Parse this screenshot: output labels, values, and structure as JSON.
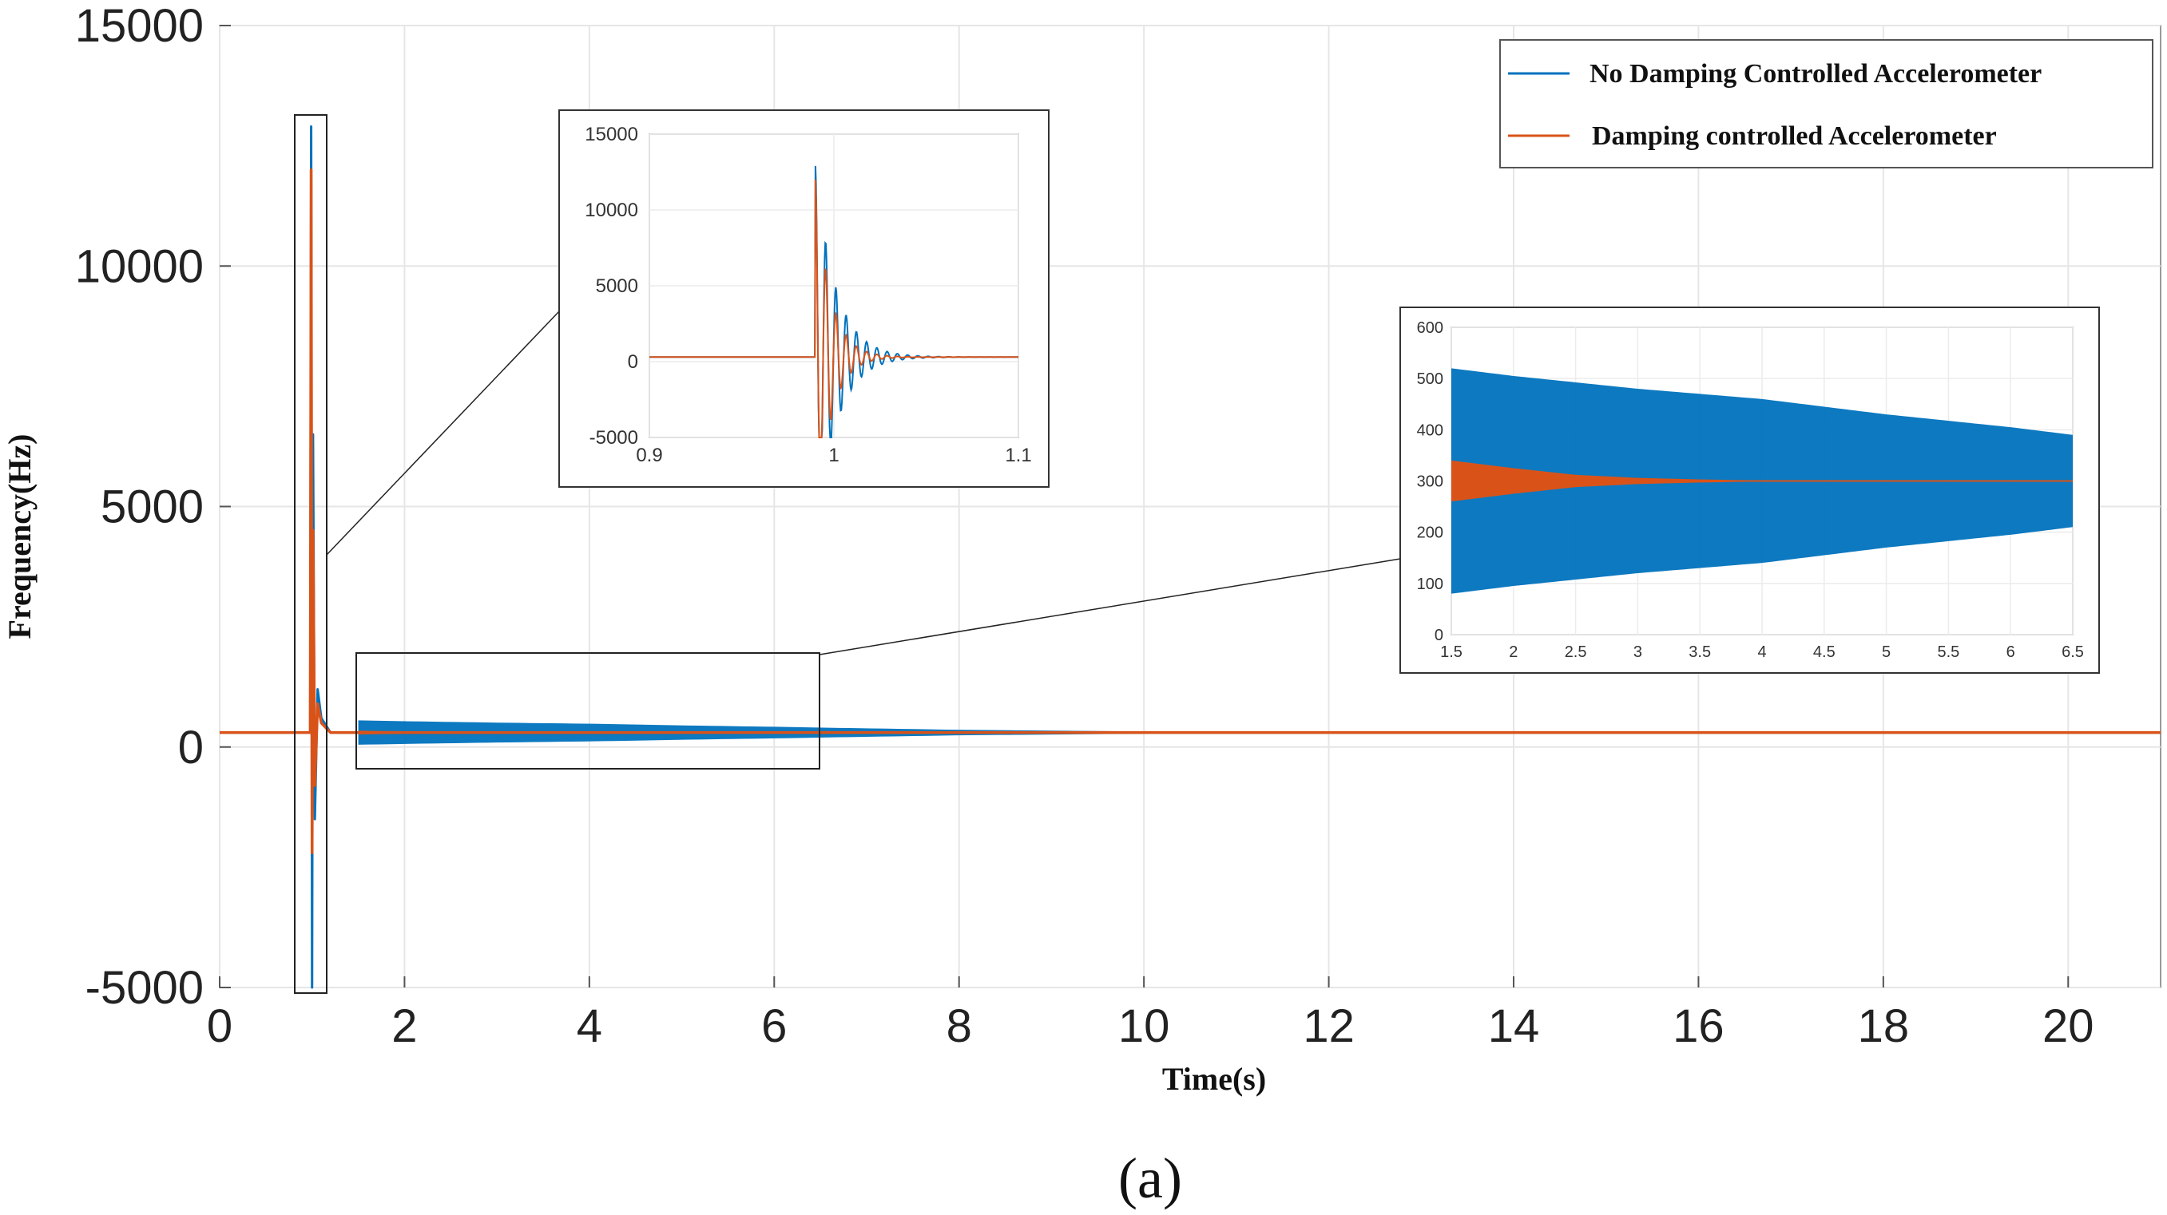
{
  "figure": {
    "caption": "(a)"
  },
  "chart_data": {
    "type": "line",
    "xlabel": "Time(s)",
    "ylabel": "Frequency(Hz)",
    "xlim": [
      0,
      21
    ],
    "ylim": [
      -5000,
      15000
    ],
    "xticks": [
      0,
      2,
      4,
      6,
      8,
      10,
      12,
      14,
      16,
      18,
      20
    ],
    "yticks": [
      -5000,
      0,
      5000,
      10000,
      15000
    ],
    "grid": true,
    "legend_position": "top-right",
    "colors": {
      "blue": "#0072BD",
      "orange": "#D95319"
    },
    "series": [
      {
        "name": "No Damping Controlled Accelerometer",
        "color": "#0072BD",
        "x": [
          0,
          0.98,
          0.99,
          1.0,
          1.01,
          1.03,
          1.06,
          1.1,
          1.2,
          1.5,
          2,
          3,
          4,
          5,
          6,
          6.5,
          8,
          10,
          12,
          14,
          16,
          18,
          20,
          21
        ],
        "y": [
          300,
          300,
          12900,
          -5000,
          6500,
          -1500,
          1200,
          600,
          300,
          300,
          300,
          300,
          300,
          300,
          300,
          300,
          300,
          300,
          300,
          300,
          300,
          300,
          300,
          300
        ],
        "envelope_time": [
          1.5,
          2,
          3,
          4,
          5,
          6,
          6.5,
          8,
          10,
          12,
          14,
          16,
          18,
          20
        ],
        "envelope_half_width_hz": [
          220,
          205,
          180,
          160,
          130,
          105,
          90,
          50,
          20,
          8,
          4,
          2,
          1,
          0
        ]
      },
      {
        "name": "Damping controlled Accelerometer",
        "color": "#D95319",
        "x": [
          0,
          0.98,
          0.99,
          1.0,
          1.01,
          1.03,
          1.06,
          1.1,
          1.2,
          1.5,
          21
        ],
        "y": [
          300,
          300,
          12000,
          -2200,
          4500,
          -800,
          900,
          500,
          300,
          300,
          300
        ],
        "envelope_time": [
          1.5,
          2,
          2.5,
          3,
          3.5,
          4,
          21
        ],
        "envelope_half_width_hz": [
          40,
          25,
          12,
          6,
          3,
          1,
          0
        ]
      }
    ],
    "insets": [
      {
        "xlim": [
          0.9,
          1.1
        ],
        "ylim": [
          -5000,
          15000
        ],
        "xticks": [
          0.9,
          1,
          1.1
        ],
        "xtick_labels": [
          "0.9",
          "1",
          "1.1"
        ],
        "yticks": [
          -5000,
          0,
          5000,
          10000,
          15000
        ],
        "ytick_labels": [
          "-5000",
          "0",
          "5000",
          "10000",
          "15000"
        ]
      },
      {
        "xlim": [
          1.5,
          6.5
        ],
        "ylim": [
          0,
          600
        ],
        "xticks": [
          1.5,
          2,
          2.5,
          3,
          3.5,
          4,
          4.5,
          5,
          5.5,
          6,
          6.5
        ],
        "xtick_labels": [
          "1.5",
          "2",
          "2.5",
          "3",
          "3.5",
          "4",
          "4.5",
          "5",
          "5.5",
          "6",
          "6.5"
        ],
        "yticks": [
          0,
          100,
          200,
          300,
          400,
          500,
          600
        ],
        "ytick_labels": [
          "0",
          "100",
          "200",
          "300",
          "400",
          "500",
          "600"
        ]
      }
    ]
  }
}
